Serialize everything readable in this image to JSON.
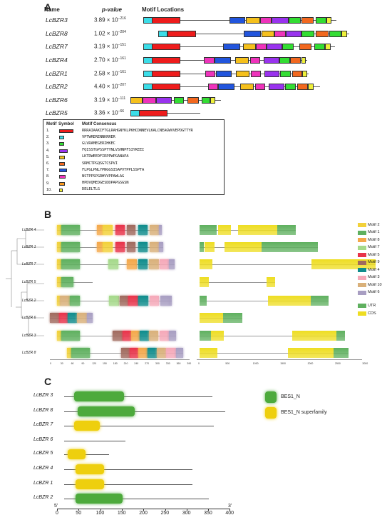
{
  "panel_a": {
    "letter": "A",
    "headers": {
      "name": "Name",
      "pvalue": "p-value",
      "motif": "Motif Locations"
    },
    "colors": {
      "1": "#ee1c1c",
      "2": "#3bdde8",
      "3": "#33dd33",
      "4": "#9933ee",
      "5": "#f5c01c",
      "6": "#f2681f",
      "7": "#2255dd",
      "8": "#ee33bb",
      "9": "#fb9a1f",
      "10": "#eef03a"
    },
    "genes": [
      {
        "name": "LcBZR3",
        "p_mant": "3.89 × 10",
        "p_exp": "−216"
      },
      {
        "name": "LcBZR8",
        "p_mant": "1.02 × 10",
        "p_exp": "−204"
      },
      {
        "name": "LcBZR7",
        "p_mant": "3.19 × 10",
        "p_exp": "−151"
      },
      {
        "name": "LcBZR4",
        "p_mant": "2.70 × 10",
        "p_exp": "−161"
      },
      {
        "name": "LcBZR1",
        "p_mant": "2.58 × 10",
        "p_exp": "−161"
      },
      {
        "name": "LcBZR2",
        "p_mant": "4.40 × 10",
        "p_exp": "−207"
      },
      {
        "name": "LcBZR6",
        "p_mant": "3.19 × 10",
        "p_exp": "−111"
      },
      {
        "name": "LcBZR5",
        "p_mant": "3.36 × 10",
        "p_exp": "−66"
      }
    ],
    "motif_table": {
      "headers": {
        "motif": "Motif",
        "symbol": "Symbol",
        "consensus": "Motif Consensus"
      },
      "rows": [
        {
          "num": "1.",
          "seq": "RRRAIAAKIFTGLRAHGNYKLPKHCDNNEVLKALCNEAGWVVEPDGTTYR"
        },
        {
          "num": "2.",
          "seq": "VPTWRERENNKRRER"
        },
        {
          "num": "3.",
          "seq": "GLVRAMEGERIHKEC"
        },
        {
          "num": "4.",
          "seq": "FQISSTGPSSPTYNLVSHNPFSIYKEEI"
        },
        {
          "num": "5.",
          "seq": "LKTDWEEDFIRPPWPGANAPA"
        },
        {
          "num": "6.",
          "seq": "SRMCTPGQSGTCSPVI"
        },
        {
          "num": "7.",
          "seq": "FLPGLPNLYPNGGSISAPVTPPLSSPTA"
        },
        {
          "num": "8.",
          "seq": "NSTPPSPGRHVVPPAWLAG"
        },
        {
          "num": "9.",
          "seq": "HPDVQMEDGESDDPAPGSGSN"
        },
        {
          "num": "10.",
          "seq": "DELELTLG"
        }
      ]
    }
  },
  "panel_b": {
    "letter": "B",
    "genes": [
      "LcBZR 4",
      "LcBZR 1",
      "LcBZR 7",
      "LcBZR 5",
      "LcBZR 2",
      "LcBZR 6",
      "LcBZR 3",
      "LcBZR 8"
    ],
    "axis1_ticks": [
      "0",
      "30",
      "60",
      "90",
      "120",
      "150",
      "180",
      "210",
      "240",
      "270",
      "300",
      "330",
      "360",
      "390"
    ],
    "axis2_ticks": [
      "0",
      "500",
      "1000",
      "1500",
      "2000",
      "2500",
      "3000"
    ],
    "legend": [
      {
        "label": "Motif 2",
        "color": "#f2d13a"
      },
      {
        "label": "Motif 1",
        "color": "#5fb05f"
      },
      {
        "label": "Motif 8",
        "color": "#f4a84a"
      },
      {
        "label": "Motif 7",
        "color": "#a5d98a"
      },
      {
        "label": "Motif 5",
        "color": "#e8334a"
      },
      {
        "label": "Motif 9",
        "color": "#a06a5e"
      },
      {
        "label": "Motif 4",
        "color": "#0f8c8c"
      },
      {
        "label": "Motif 3",
        "color": "#f5a8b8"
      },
      {
        "label": "Motif 10",
        "color": "#d9b07a"
      },
      {
        "label": "Motif 6",
        "color": "#a89ec2"
      }
    ],
    "legend2": [
      {
        "label": "UTR",
        "color": "#5fb05f"
      },
      {
        "label": "CDS",
        "color": "#eedd22"
      }
    ]
  },
  "panel_c": {
    "letter": "C",
    "genes": [
      "LcBZR 3",
      "LcBZR 8",
      "LcBZR 7",
      "LcBZR 6",
      "LcBZR 5",
      "LcBZR 4",
      "LcBZR 1",
      "LcBZR 2"
    ],
    "axis_ticks": [
      "0",
      "50",
      "100",
      "150",
      "200",
      "250",
      "300",
      "350",
      "400"
    ],
    "axis_end5": "5'",
    "axis_end3": "3'",
    "legend": [
      {
        "label": "BES1_N",
        "color": "#4daa3c"
      },
      {
        "label": "BES1_N superfamily",
        "color": "#eecf0e"
      }
    ]
  }
}
